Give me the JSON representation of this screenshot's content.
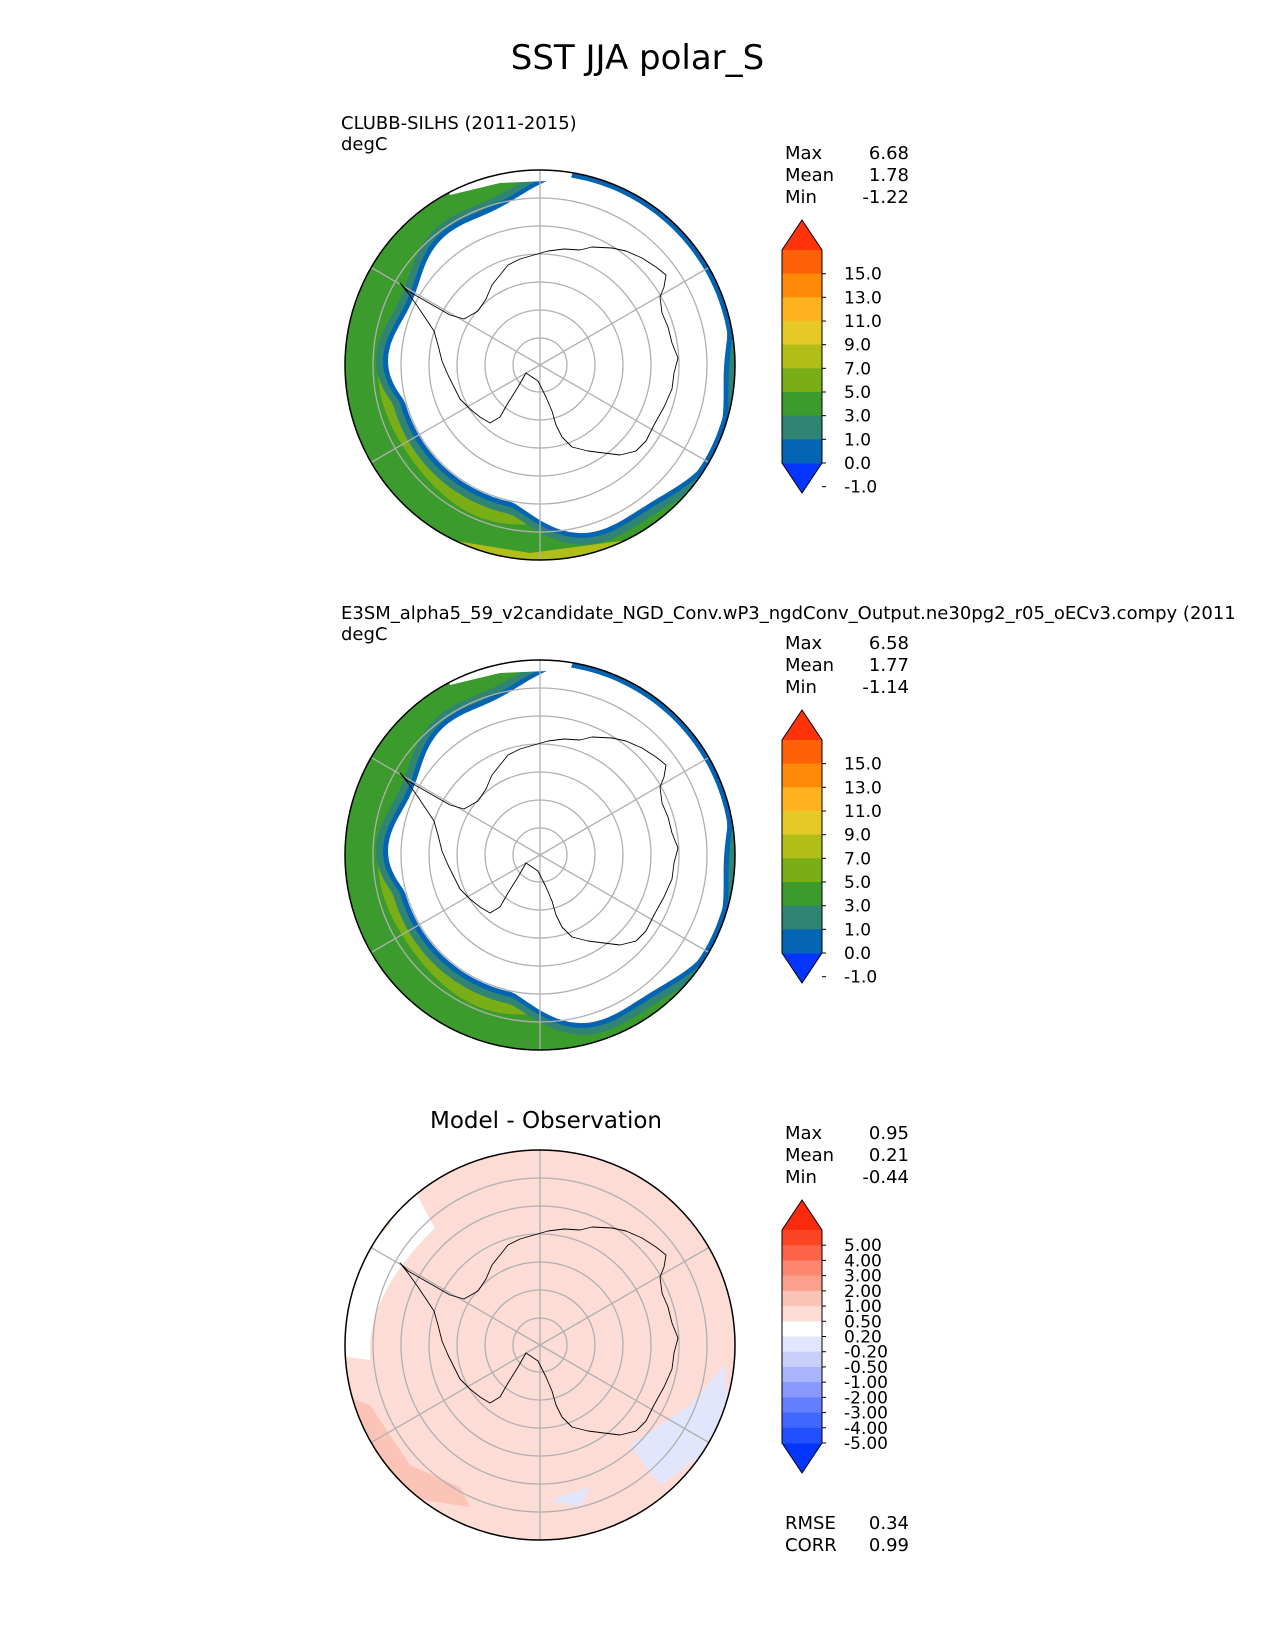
{
  "title": "SST JJA polar_S",
  "panels": [
    {
      "name": "test",
      "title": "CLUBB-SILHS (2011-2015)",
      "units": "degC",
      "center_title": "",
      "stats": [
        {
          "label": "Max",
          "value": "6.68"
        },
        {
          "label": "Mean",
          "value": "1.78"
        },
        {
          "label": "Min",
          "value": "-1.22"
        }
      ],
      "colorbar": {
        "ticks": [
          "15.0",
          "13.0",
          "11.0",
          "9.0",
          "7.0",
          "5.0",
          "3.0",
          "1.0",
          "0.0",
          "-1.0"
        ],
        "colors": [
          "#0335ff",
          "#0464b4",
          "#308473",
          "#3b9b2c",
          "#7aae16",
          "#b1bd19",
          "#e6c827",
          "#ffb21f",
          "#ff8a08",
          "#ff6108",
          "#ff320a"
        ]
      }
    },
    {
      "name": "reference",
      "title": "E3SM_alpha5_59_v2candidate_NGD_Conv.wP3_ngdConv_Output.ne30pg2_r05_oECv3.compy (2011",
      "units": "degC",
      "center_title": "",
      "stats": [
        {
          "label": "Max",
          "value": "6.58"
        },
        {
          "label": "Mean",
          "value": "1.77"
        },
        {
          "label": "Min",
          "value": "-1.14"
        }
      ],
      "colorbar": {
        "ticks": [
          "15.0",
          "13.0",
          "11.0",
          "9.0",
          "7.0",
          "5.0",
          "3.0",
          "1.0",
          "0.0",
          "-1.0"
        ],
        "colors": [
          "#0335ff",
          "#0464b4",
          "#308473",
          "#3b9b2c",
          "#7aae16",
          "#b1bd19",
          "#e6c827",
          "#ffb21f",
          "#ff8a08",
          "#ff6108",
          "#ff320a"
        ]
      }
    },
    {
      "name": "diff",
      "title": "",
      "units": "",
      "center_title": "Model - Observation",
      "stats": [
        {
          "label": "Max",
          "value": "0.95"
        },
        {
          "label": "Mean",
          "value": "0.21"
        },
        {
          "label": "Min",
          "value": "-0.44"
        }
      ],
      "extra_stats": [
        {
          "label": "RMSE",
          "value": "0.34"
        },
        {
          "label": "CORR",
          "value": "0.99"
        }
      ],
      "colorbar": {
        "ticks": [
          "5.00",
          "4.00",
          "3.00",
          "2.00",
          "1.00",
          "0.50",
          "0.20",
          "-0.20",
          "-0.50",
          "-1.00",
          "-2.00",
          "-3.00",
          "-4.00",
          "-5.00"
        ],
        "colors": [
          "#0335ff",
          "#2050ff",
          "#4067ff",
          "#637eff",
          "#8898ff",
          "#a9b4fc",
          "#c8d0fa",
          "#e1e6fc",
          "#ffffff",
          "#fcdcd5",
          "#fcc3b7",
          "#fca08e",
          "#fc8670",
          "#fb6448",
          "#fb4626",
          "#fb2a0e"
        ]
      }
    }
  ],
  "chart_data": [
    {
      "type": "heatmap",
      "projection": "south-polar-stereographic",
      "title": "CLUBB-SILHS (2011-2015)",
      "units": "degC",
      "variable": "SST",
      "season": "JJA",
      "levels": [
        -1.0,
        0.0,
        1.0,
        3.0,
        5.0,
        7.0,
        9.0,
        11.0,
        13.0,
        15.0
      ],
      "max": 6.68,
      "mean": 1.78,
      "min": -1.22,
      "field_description": "Warmest (5-7 degC, yellow-green) near northern boundary at Atlantic/Pacific sectors; cooling to -1-0 degC at sea-ice edge; sea ice masked white around Antarctica."
    },
    {
      "type": "heatmap",
      "projection": "south-polar-stereographic",
      "title": "E3SM_alpha5_59_v2candidate_NGD_Conv.wP3_ngdConv_Output.ne30pg2_r05_oECv3.compy (2011",
      "units": "degC",
      "variable": "SST",
      "season": "JJA",
      "levels": [
        -1.0,
        0.0,
        1.0,
        3.0,
        5.0,
        7.0,
        9.0,
        11.0,
        13.0,
        15.0
      ],
      "max": 6.58,
      "mean": 1.77,
      "min": -1.14
    },
    {
      "type": "heatmap",
      "projection": "south-polar-stereographic",
      "title": "Model - Observation",
      "variable": "SST difference",
      "levels": [
        -5.0,
        -4.0,
        -3.0,
        -2.0,
        -1.0,
        -0.5,
        -0.2,
        0.2,
        0.5,
        1.0,
        2.0,
        3.0,
        4.0,
        5.0
      ],
      "max": 0.95,
      "mean": 0.21,
      "min": -0.44,
      "rmse": 0.34,
      "corr": 0.99
    }
  ]
}
